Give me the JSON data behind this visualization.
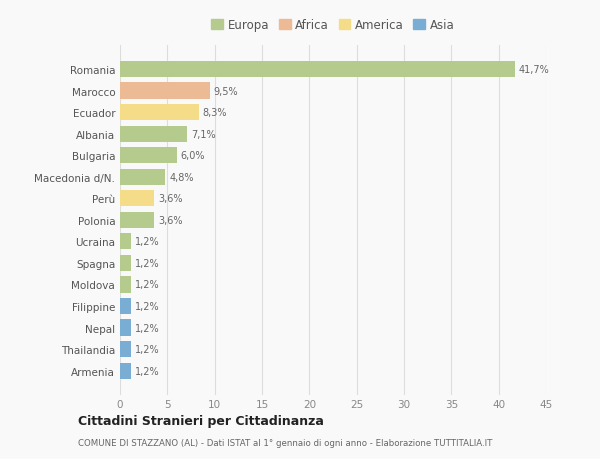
{
  "categories": [
    "Romania",
    "Marocco",
    "Ecuador",
    "Albania",
    "Bulgaria",
    "Macedonia d/N.",
    "Perù",
    "Polonia",
    "Ucraina",
    "Spagna",
    "Moldova",
    "Filippine",
    "Nepal",
    "Thailandia",
    "Armenia"
  ],
  "values": [
    41.7,
    9.5,
    8.3,
    7.1,
    6.0,
    4.8,
    3.6,
    3.6,
    1.2,
    1.2,
    1.2,
    1.2,
    1.2,
    1.2,
    1.2
  ],
  "labels": [
    "41,7%",
    "9,5%",
    "8,3%",
    "7,1%",
    "6,0%",
    "4,8%",
    "3,6%",
    "3,6%",
    "1,2%",
    "1,2%",
    "1,2%",
    "1,2%",
    "1,2%",
    "1,2%",
    "1,2%"
  ],
  "colors": [
    "#b5cb8e",
    "#edba96",
    "#f5dc88",
    "#b5cb8e",
    "#b5cb8e",
    "#b5cb8e",
    "#f5dc88",
    "#b5cb8e",
    "#b5cb8e",
    "#b5cb8e",
    "#b5cb8e",
    "#7aadd4",
    "#7aadd4",
    "#7aadd4",
    "#7aadd4"
  ],
  "legend_labels": [
    "Europa",
    "Africa",
    "America",
    "Asia"
  ],
  "legend_colors": [
    "#b5cb8e",
    "#edba96",
    "#f5dc88",
    "#7aadd4"
  ],
  "xlim": [
    0,
    45
  ],
  "xticks": [
    0,
    5,
    10,
    15,
    20,
    25,
    30,
    35,
    40,
    45
  ],
  "title": "Cittadini Stranieri per Cittadinanza",
  "subtitle": "COMUNE DI STAZZANO (AL) - Dati ISTAT al 1° gennaio di ogni anno - Elaborazione TUTTITALIA.IT",
  "bg_color": "#f9f9f9",
  "grid_color": "#dddddd",
  "bar_height": 0.75
}
